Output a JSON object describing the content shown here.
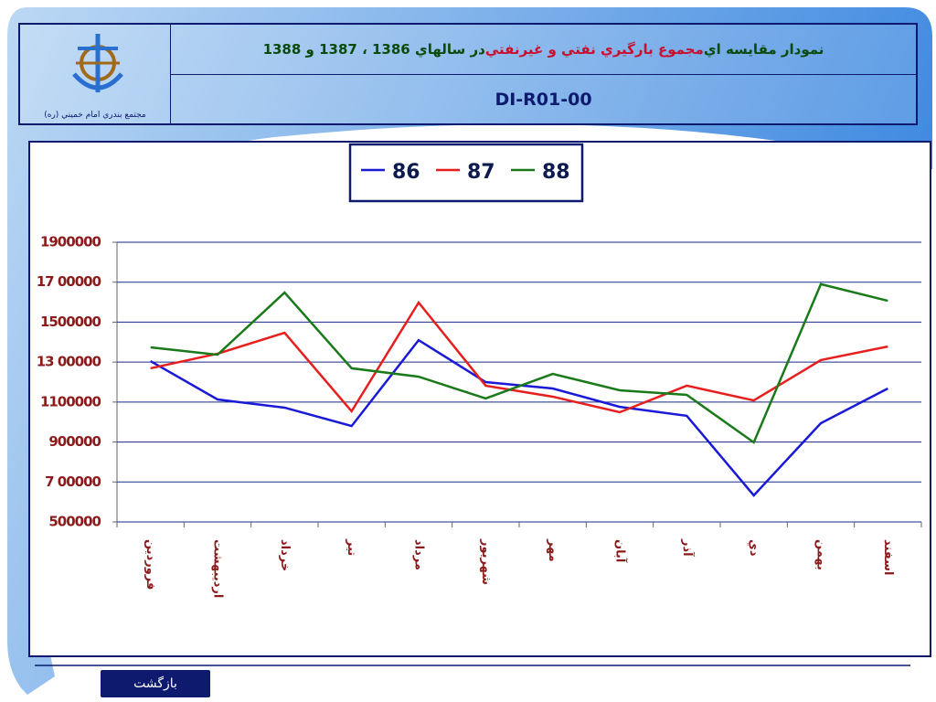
{
  "header": {
    "title": [
      "نمودار مقايسه اي ",
      "مجموع بارگيري نفتي و غيرنفتي",
      " در سالهاي 1386 ، 1387 و 1388"
    ],
    "code": "DI-R01-00",
    "logo_caption": "مجتمع بندري امام خميني (ره)"
  },
  "chart_data": {
    "type": "line",
    "categories": [
      "فروردين",
      "ارديبهشت",
      "خرداد",
      "تير",
      "مرداد",
      "شهريور",
      "مهر",
      "آبان",
      "آذر",
      "دي",
      "بهمن",
      "اسفند"
    ],
    "series": [
      {
        "name": "86",
        "color": "#1a1ad6",
        "values": [
          1305000,
          1113000,
          1072000,
          980000,
          1410000,
          1200000,
          1168000,
          1076000,
          1031000,
          633000,
          994000,
          1168000
        ]
      },
      {
        "name": "87",
        "color": "#e61e1e",
        "values": [
          1269000,
          1342000,
          1447000,
          1054000,
          1598000,
          1182000,
          1127000,
          1049000,
          1182000,
          1108000,
          1310000,
          1378000
        ]
      },
      {
        "name": "88",
        "color": "#1a7a1a",
        "values": [
          1374000,
          1337000,
          1648000,
          1269000,
          1227000,
          1118000,
          1241000,
          1159000,
          1136000,
          898000,
          1690000,
          1607000
        ]
      }
    ],
    "ylim": [
      500000,
      1900000
    ],
    "yticks": [
      500000,
      {
        "value": 700000,
        "label": "7 00000"
      },
      900000,
      1100000,
      {
        "value": 1300000,
        "label": "13 00000"
      },
      1500000,
      {
        "value": 1700000,
        "label": "17 00000"
      },
      1900000
    ],
    "grid": true,
    "legend": "top"
  },
  "nav": {
    "back": "بازگشت"
  }
}
